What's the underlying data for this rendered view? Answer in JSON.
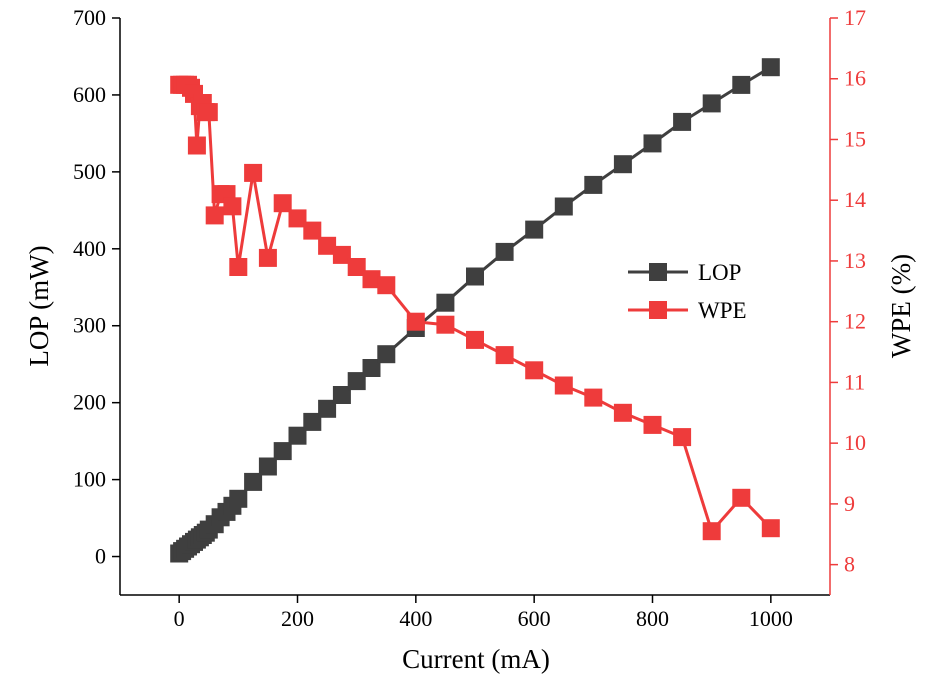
{
  "chart_data": {
    "type": "line",
    "title": "",
    "xlabel": "Current (mA)",
    "ylabel": "LOP (mW)",
    "y2label": "WPE (%)",
    "xlim": [
      -100,
      1100
    ],
    "ylim": [
      -50,
      700
    ],
    "y2lim": [
      7.5,
      17
    ],
    "xticks": [
      0,
      200,
      400,
      600,
      800,
      1000
    ],
    "yticks": [
      0,
      100,
      200,
      300,
      400,
      500,
      600,
      700
    ],
    "y2ticks": [
      8,
      9,
      10,
      11,
      12,
      13,
      14,
      15,
      16,
      17
    ],
    "legend_position": "center-right",
    "grid": false,
    "x": [
      0,
      5,
      10,
      15,
      20,
      25,
      30,
      35,
      40,
      45,
      50,
      60,
      70,
      80,
      90,
      100,
      125,
      150,
      175,
      200,
      225,
      250,
      275,
      300,
      325,
      350,
      400,
      450,
      500,
      550,
      600,
      650,
      700,
      750,
      800,
      850,
      900,
      950,
      1000
    ],
    "series": [
      {
        "name": "LOP",
        "axis": "left",
        "color": "#3f3f3f",
        "marker": "square",
        "values": [
          4,
          7,
          10,
          13,
          16,
          19,
          22,
          25,
          28,
          31,
          35,
          42,
          51,
          58,
          66,
          75,
          97,
          117,
          137,
          157,
          175,
          192,
          210,
          228,
          245,
          263,
          297,
          330,
          364,
          396,
          425,
          455,
          483,
          510,
          537,
          565,
          589,
          613,
          636
        ]
      },
      {
        "name": "WPE",
        "axis": "right",
        "color": "#ee3b3b",
        "marker": "square",
        "values": [
          15.9,
          15.9,
          15.9,
          15.9,
          15.85,
          15.75,
          14.9,
          15.55,
          15.6,
          15.45,
          15.45,
          13.75,
          14.1,
          14.1,
          13.9,
          12.9,
          14.45,
          13.05,
          13.95,
          13.7,
          13.5,
          13.25,
          13.1,
          12.9,
          12.7,
          12.6,
          12.0,
          11.95,
          11.7,
          11.45,
          11.2,
          10.95,
          10.75,
          10.5,
          10.3,
          10.1,
          8.55,
          9.1,
          8.6
        ]
      }
    ]
  }
}
